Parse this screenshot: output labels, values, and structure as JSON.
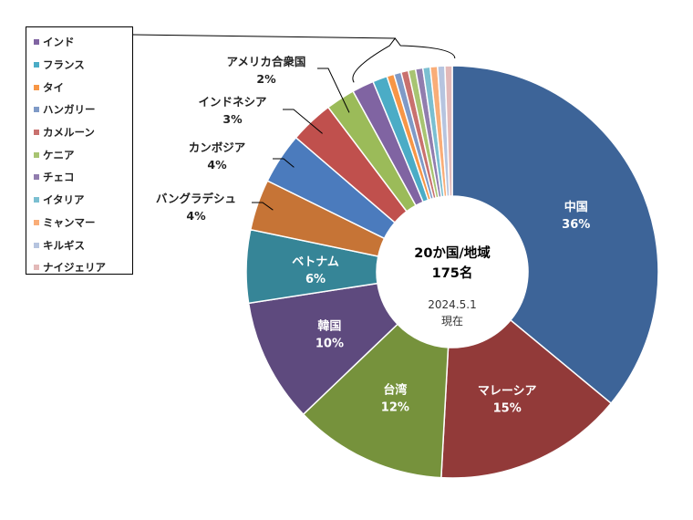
{
  "chart_data": {
    "type": "pie",
    "center_title": "20か国/地域",
    "center_subtitle": "175名",
    "date_line1": "2024.5.1",
    "date_line2": "現在",
    "slices": [
      {
        "label": "中国",
        "value": 63,
        "percent": "36%",
        "color": "#3d6498",
        "labelStyle": "inside"
      },
      {
        "label": "マレーシア",
        "value": 26,
        "percent": "15%",
        "color": "#923a39",
        "labelStyle": "inside"
      },
      {
        "label": "台湾",
        "value": 21,
        "percent": "12%",
        "color": "#76923c",
        "labelStyle": "inside"
      },
      {
        "label": "韓国",
        "value": 17,
        "percent": "10%",
        "color": "#5e4a7e",
        "labelStyle": "inside"
      },
      {
        "label": "ベトナム",
        "value": 10,
        "percent": "6%",
        "color": "#368597",
        "labelStyle": "inside"
      },
      {
        "label": "バングラデシュ",
        "value": 7,
        "percent": "4%",
        "color": "#c67436",
        "labelStyle": "outside"
      },
      {
        "label": "カンボジア",
        "value": 7,
        "percent": "4%",
        "color": "#4b7bbd",
        "labelStyle": "outside"
      },
      {
        "label": "インドネシア",
        "value": 6,
        "percent": "3%",
        "color": "#c0504d",
        "labelStyle": "outside"
      },
      {
        "label": "アメリカ合衆国",
        "value": 4,
        "percent": "2%",
        "color": "#9bbb59",
        "labelStyle": "outside"
      },
      {
        "label": "インド",
        "value": 3,
        "percent": "",
        "color": "#8064a2",
        "labelStyle": "legend"
      },
      {
        "label": "フランス",
        "value": 2,
        "percent": "",
        "color": "#4bacc6",
        "labelStyle": "legend"
      },
      {
        "label": "タイ",
        "value": 1,
        "percent": "",
        "color": "#f79646",
        "labelStyle": "legend"
      },
      {
        "label": "ハンガリー",
        "value": 1,
        "percent": "",
        "color": "#7f9ac7",
        "labelStyle": "legend"
      },
      {
        "label": "カメルーン",
        "value": 1,
        "percent": "",
        "color": "#c9716e",
        "labelStyle": "legend"
      },
      {
        "label": "ケニア",
        "value": 1,
        "percent": "",
        "color": "#a8c472",
        "labelStyle": "legend"
      },
      {
        "label": "チェコ",
        "value": 1,
        "percent": "",
        "color": "#917dae",
        "labelStyle": "legend"
      },
      {
        "label": "イタリア",
        "value": 1,
        "percent": "",
        "color": "#7bbfd1",
        "labelStyle": "legend"
      },
      {
        "label": "ミャンマー",
        "value": 1,
        "percent": "",
        "color": "#f9ad78",
        "labelStyle": "legend"
      },
      {
        "label": "キルギス",
        "value": 1,
        "percent": "",
        "color": "#b6c4df",
        "labelStyle": "legend"
      },
      {
        "label": "ナイジェリア",
        "value": 1,
        "percent": "",
        "color": "#e3b9b8",
        "labelStyle": "legend"
      }
    ],
    "legend_placement": "top-left"
  }
}
